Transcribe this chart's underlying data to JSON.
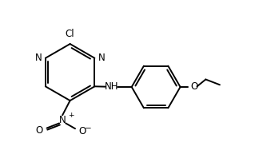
{
  "bg_color": "#ffffff",
  "line_color": "#000000",
  "text_color": "#000000",
  "line_width": 1.4,
  "font_size": 8.5,
  "figsize": [
    3.24,
    1.98
  ],
  "dpi": 100,
  "xlim": [
    0,
    9.5
  ],
  "ylim": [
    0,
    5.5
  ]
}
